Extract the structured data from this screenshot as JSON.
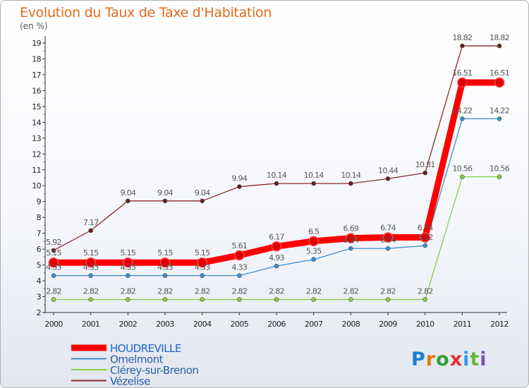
{
  "title": "Evolution du Taux de Taxe d'Habitation",
  "unit_label": "(en %)",
  "brand": "Proxiti",
  "chart_data": {
    "type": "line",
    "title": "Evolution du Taux de Taxe d'Habitation",
    "ylabel": "(en %)",
    "xlabel": "",
    "x": [
      "2000",
      "2001",
      "2002",
      "2003",
      "2004",
      "2005",
      "2006",
      "2007",
      "2008",
      "2009",
      "2010",
      "2011",
      "2012"
    ],
    "ylim": [
      2,
      19
    ],
    "yticks": [
      2,
      3,
      4,
      5,
      6,
      7,
      8,
      9,
      10,
      11,
      12,
      13,
      14,
      15,
      16,
      17,
      18,
      19
    ],
    "grid": false,
    "legend_position": "bottom-left",
    "series": [
      {
        "name": "HOUDREVILLE",
        "color": "#ff0000",
        "values": [
          5.15,
          5.15,
          5.15,
          5.15,
          5.15,
          5.61,
          6.17,
          6.5,
          6.69,
          6.74,
          6.74,
          16.51,
          16.51
        ],
        "labels": [
          "5.15",
          "5.15",
          "5.15",
          "5.15",
          "5.15",
          "5.61",
          "6.17",
          "6.5",
          "6.69",
          "6.74",
          "6.74",
          "16.51",
          "16.51"
        ]
      },
      {
        "name": "Omelmont",
        "color": "#3a8fd1",
        "values": [
          4.33,
          4.33,
          4.33,
          4.33,
          4.33,
          4.33,
          4.93,
          5.35,
          6.04,
          6.04,
          6.22,
          14.22,
          14.22
        ],
        "labels": [
          "4.33",
          "4.33",
          "4.33",
          "4.33",
          "4.33",
          "4.33",
          "4.93",
          "5.35",
          "6.04",
          "6.04",
          "6.22",
          "14.22",
          "14.22"
        ]
      },
      {
        "name": "Clérey-sur-Brenon",
        "color": "#88cc44",
        "values": [
          2.82,
          2.82,
          2.82,
          2.82,
          2.82,
          2.82,
          2.82,
          2.82,
          2.82,
          2.82,
          2.82,
          10.56,
          10.56
        ],
        "labels": [
          "2.82",
          "2.82",
          "2.82",
          "2.82",
          "2.82",
          "2.82",
          "2.82",
          "2.82",
          "2.82",
          "2.82",
          "2.82",
          "10.56",
          "10.56"
        ]
      },
      {
        "name": "Vézelise",
        "color": "#8b2a2a",
        "values": [
          5.92,
          7.17,
          9.04,
          9.04,
          9.04,
          9.94,
          10.14,
          10.14,
          10.14,
          10.44,
          10.81,
          18.82,
          18.82
        ],
        "labels": [
          "5.92",
          "7.17",
          "9.04",
          "9.04",
          "9.04",
          "9.94",
          "10.14",
          "10.14",
          "10.14",
          "10.44",
          "10.81",
          "18.82",
          "18.82"
        ]
      }
    ]
  }
}
